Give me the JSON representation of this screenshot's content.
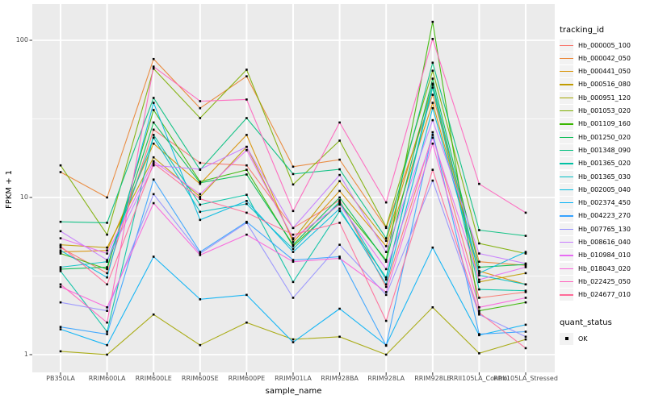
{
  "y_axis": {
    "title": "FPKM + 1",
    "ticks": [
      "100",
      "10",
      "1"
    ],
    "tick_values": [
      100,
      10,
      1
    ]
  },
  "x_axis": {
    "title": "sample_name"
  },
  "legend": {
    "tracking_title": "tracking_id",
    "quant_title": "quant_status",
    "quant_items": [
      {
        "label": "OK"
      }
    ]
  },
  "colors": {
    "panel_bg": "#EBEBEB",
    "grid": "#FFFFFF",
    "tick_mark": "#333333",
    "tick_text": "#4D4D4D",
    "marker": "#000000",
    "legend_key_bg": "#F2F2F2"
  },
  "chart_data": {
    "type": "line",
    "title": "",
    "xlabel": "sample_name",
    "ylabel": "FPKM + 1",
    "y_scale": "log10",
    "ylim": [
      1,
      140
    ],
    "grid": "on",
    "legend_position": "right",
    "point_marker": "black-square",
    "categories": [
      "PB350LA",
      "RRIM600LA",
      "RRIM600LE",
      "RRIM600SE",
      "RRIM600PE",
      "RRIM901LA",
      "RRIM928BA",
      "RRIM928LA",
      "RRIM928LE",
      "RRII105LA_Control",
      "RRII105LA_Stressed"
    ],
    "series": [
      {
        "name": "Hb_000005_100",
        "color": "#F8766D",
        "values": [
          4.8,
          3.3,
          27,
          16.6,
          16,
          6.4,
          9.6,
          2.7,
          25,
          2.3,
          2.5
        ]
      },
      {
        "name": "Hb_000042_050",
        "color": "#EA8331",
        "values": [
          14.5,
          10.0,
          76,
          37,
          59,
          15.7,
          17.4,
          6.4,
          45,
          3.9,
          3.7
        ]
      },
      {
        "name": "Hb_000441_050",
        "color": "#D89000",
        "values": [
          4.5,
          4.6,
          22,
          12.2,
          25,
          5.2,
          11.0,
          4.9,
          40,
          3.4,
          2.8
        ]
      },
      {
        "name": "Hb_000516_080",
        "color": "#C09B00",
        "values": [
          5.0,
          4.8,
          18,
          10.1,
          21,
          5.4,
          12.7,
          5.3,
          52,
          2.9,
          3.3
        ]
      },
      {
        "name": "Hb_000951_120",
        "color": "#A3A500",
        "values": [
          1.05,
          1.0,
          1.8,
          1.15,
          1.6,
          1.25,
          1.3,
          1.0,
          2.0,
          1.02,
          1.25
        ]
      },
      {
        "name": "Hb_001053_020",
        "color": "#7CAE00",
        "values": [
          16,
          5.8,
          66,
          32,
          65,
          12.1,
          23,
          6.5,
          64,
          5.1,
          4.4
        ]
      },
      {
        "name": "Hb_001109_160",
        "color": "#39B600",
        "values": [
          4.4,
          3.5,
          36,
          12.6,
          15,
          4.9,
          9.2,
          4.0,
          131,
          1.9,
          2.15
        ]
      },
      {
        "name": "Hb_001250_020",
        "color": "#00BB4E",
        "values": [
          3.5,
          3.6,
          30,
          12.4,
          14,
          5.0,
          10.0,
          3.9,
          57,
          3.6,
          3.75
        ]
      },
      {
        "name": "Hb_001348_090",
        "color": "#00BF7D",
        "values": [
          7.0,
          6.9,
          43,
          15,
          32,
          14.1,
          15.1,
          5.5,
          72,
          6.2,
          5.7
        ]
      },
      {
        "name": "Hb_001365_020",
        "color": "#00C1A3",
        "values": [
          3.4,
          1.4,
          25,
          9.0,
          10.4,
          2.9,
          8.2,
          3.1,
          50,
          2.6,
          2.55
        ]
      },
      {
        "name": "Hb_001365_030",
        "color": "#00BFC4",
        "values": [
          3.6,
          3.9,
          24,
          8.1,
          9.1,
          4.7,
          9.4,
          3.0,
          53,
          3.2,
          2.8
        ]
      },
      {
        "name": "Hb_002005_040",
        "color": "#00BAE0",
        "values": [
          4.6,
          3.1,
          40,
          7.2,
          9.5,
          4.5,
          8.5,
          2.8,
          37,
          3.3,
          4.5
        ]
      },
      {
        "name": "Hb_002374_450",
        "color": "#00B0F6",
        "values": [
          1.45,
          1.15,
          4.2,
          2.25,
          2.4,
          1.2,
          1.96,
          1.15,
          4.8,
          1.33,
          1.55
        ]
      },
      {
        "name": "Hb_004223_270",
        "color": "#35A2FF",
        "values": [
          1.5,
          1.35,
          13,
          4.5,
          7.0,
          4.0,
          4.2,
          1.14,
          26,
          1.35,
          1.4
        ]
      },
      {
        "name": "Hb_007765_130",
        "color": "#9590FF",
        "values": [
          2.15,
          1.9,
          10.5,
          4.4,
          6.9,
          2.3,
          5.0,
          2.4,
          12.8,
          1.8,
          1.3
        ]
      },
      {
        "name": "Hb_008616_040",
        "color": "#C77CFF",
        "values": [
          6.1,
          4.0,
          16,
          15.1,
          21,
          6.4,
          13.9,
          4.5,
          31,
          4.4,
          3.8
        ]
      },
      {
        "name": "Hb_010984_010",
        "color": "#E76BF3",
        "values": [
          5.5,
          4.4,
          17,
          10.5,
          20,
          5.5,
          9.0,
          3.5,
          24,
          3.0,
          3.6
        ]
      },
      {
        "name": "Hb_018043_020",
        "color": "#FA62DB",
        "values": [
          2.7,
          2.0,
          9.2,
          4.3,
          5.8,
          3.9,
          4.1,
          2.5,
          22,
          2.0,
          2.3
        ]
      },
      {
        "name": "Hb_022425_050",
        "color": "#FF62BC",
        "values": [
          2.8,
          1.6,
          68,
          41,
          42,
          8.2,
          30,
          9.3,
          102,
          12.2,
          8.0
        ]
      },
      {
        "name": "Hb_024677_010",
        "color": "#FF6A98",
        "values": [
          4.9,
          2.8,
          16.5,
          9.8,
          8.0,
          5.8,
          6.9,
          1.64,
          15,
          1.85,
          1.1
        ]
      }
    ]
  }
}
